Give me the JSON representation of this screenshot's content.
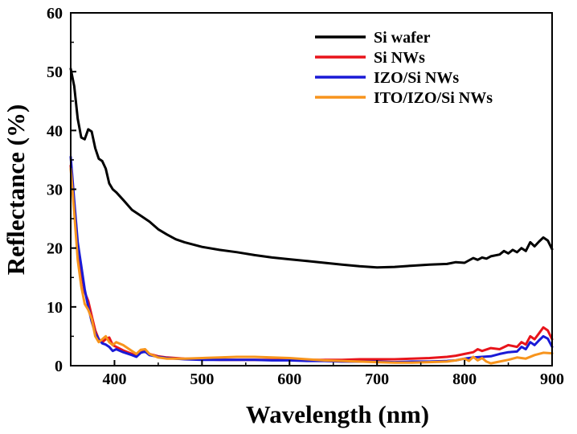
{
  "chart_data": {
    "type": "line",
    "title": "",
    "xlabel": "Wavelength (nm)",
    "ylabel": "Reflectance (%)",
    "xlim": [
      350,
      900
    ],
    "ylim": [
      0,
      60
    ],
    "xticks": [
      400,
      500,
      600,
      700,
      800,
      900
    ],
    "yticks": [
      0,
      10,
      20,
      30,
      40,
      50,
      60
    ],
    "grid": false,
    "legend_position": "top-right",
    "series": [
      {
        "name": "Si wafer",
        "color": "#000000",
        "x": [
          350,
          354,
          358,
          362,
          366,
          370,
          374,
          378,
          382,
          386,
          390,
          394,
          398,
          402,
          410,
          420,
          430,
          440,
          450,
          460,
          470,
          480,
          490,
          500,
          520,
          540,
          560,
          580,
          600,
          620,
          640,
          660,
          680,
          700,
          720,
          740,
          760,
          780,
          790,
          800,
          805,
          810,
          815,
          820,
          825,
          830,
          840,
          845,
          850,
          855,
          860,
          865,
          870,
          875,
          880,
          885,
          890,
          895,
          900
        ],
        "y": [
          50.5,
          47.5,
          42,
          38.8,
          38.5,
          40.2,
          39.8,
          37,
          35.2,
          34.8,
          33.5,
          31,
          30,
          29.5,
          28.2,
          26.5,
          25.5,
          24.5,
          23.2,
          22.3,
          21.5,
          21,
          20.6,
          20.2,
          19.7,
          19.3,
          18.8,
          18.4,
          18.1,
          17.8,
          17.5,
          17.2,
          16.9,
          16.7,
          16.8,
          17,
          17.2,
          17.3,
          17.6,
          17.5,
          17.9,
          18.3,
          18,
          18.4,
          18.2,
          18.6,
          18.9,
          19.5,
          19.1,
          19.7,
          19.3,
          20,
          19.5,
          21,
          20.3,
          21.1,
          21.8,
          21.3,
          19.8
        ]
      },
      {
        "name": "Si NWs",
        "color": "#e8141b",
        "x": [
          350,
          354,
          358,
          362,
          366,
          370,
          374,
          378,
          382,
          386,
          390,
          394,
          398,
          402,
          410,
          420,
          425,
          430,
          435,
          440,
          450,
          460,
          480,
          500,
          520,
          540,
          560,
          580,
          600,
          620,
          640,
          660,
          680,
          700,
          720,
          740,
          760,
          780,
          790,
          800,
          810,
          815,
          820,
          830,
          840,
          850,
          860,
          865,
          870,
          875,
          880,
          885,
          890,
          895,
          900
        ],
        "y": [
          34,
          27,
          20,
          16,
          12.5,
          11,
          8.5,
          6,
          4.5,
          4,
          4.5,
          4.8,
          3.5,
          3.2,
          2.6,
          2,
          1.6,
          2.2,
          2.6,
          2,
          1.6,
          1.4,
          1.2,
          1.1,
          1,
          1,
          1,
          1,
          1,
          1,
          1,
          1,
          1.1,
          1.1,
          1.1,
          1.2,
          1.3,
          1.5,
          1.7,
          2,
          2.3,
          2.8,
          2.5,
          3,
          2.8,
          3.5,
          3.2,
          4,
          3.6,
          5,
          4.5,
          5.5,
          6.5,
          6,
          4.5
        ]
      },
      {
        "name": "IZO/Si NWs",
        "color": "#1a1ad6",
        "x": [
          350,
          354,
          358,
          362,
          366,
          370,
          374,
          378,
          382,
          386,
          390,
          394,
          398,
          402,
          410,
          420,
          425,
          430,
          435,
          440,
          450,
          460,
          480,
          500,
          520,
          540,
          560,
          580,
          600,
          620,
          640,
          660,
          680,
          700,
          720,
          740,
          760,
          780,
          790,
          800,
          810,
          820,
          830,
          840,
          850,
          860,
          865,
          870,
          875,
          880,
          885,
          890,
          895,
          900
        ],
        "y": [
          35.5,
          28,
          21,
          17,
          13,
          10,
          7.5,
          5.5,
          4.5,
          3.8,
          3.6,
          3.2,
          2.5,
          2.8,
          2.3,
          1.8,
          1.5,
          2.2,
          2.4,
          1.8,
          1.5,
          1.3,
          1.1,
          1,
          1,
          1,
          1,
          0.9,
          0.9,
          0.8,
          0.8,
          0.7,
          0.7,
          0.7,
          0.6,
          0.7,
          0.7,
          0.8,
          0.9,
          1.2,
          1.4,
          1.5,
          1.6,
          2,
          2.3,
          2.4,
          3.2,
          2.8,
          4,
          3.5,
          4.3,
          5,
          4.6,
          3.2
        ]
      },
      {
        "name": "ITO/IZO/Si NWs",
        "color": "#f7941d",
        "x": [
          350,
          354,
          358,
          362,
          366,
          370,
          374,
          378,
          382,
          386,
          390,
          394,
          398,
          402,
          410,
          420,
          425,
          430,
          435,
          440,
          450,
          460,
          480,
          500,
          520,
          540,
          560,
          580,
          600,
          620,
          640,
          660,
          680,
          700,
          720,
          740,
          760,
          780,
          790,
          800,
          805,
          810,
          815,
          820,
          825,
          830,
          840,
          850,
          860,
          870,
          880,
          890,
          900
        ],
        "y": [
          33.5,
          26,
          18,
          13.5,
          10.5,
          9.5,
          8,
          5,
          4,
          4.5,
          5,
          4,
          3.5,
          4,
          3.5,
          2.5,
          2,
          2.7,
          2.8,
          2,
          1.4,
          1.2,
          1.2,
          1.3,
          1.4,
          1.5,
          1.5,
          1.4,
          1.3,
          1.1,
          0.9,
          0.8,
          0.7,
          0.6,
          0.5,
          0.5,
          0.6,
          0.7,
          0.9,
          1.2,
          0.8,
          1.5,
          0.9,
          1.3,
          0.7,
          0.4,
          0.7,
          1,
          1.4,
          1.2,
          1.8,
          2.2,
          2.1
        ]
      }
    ]
  }
}
